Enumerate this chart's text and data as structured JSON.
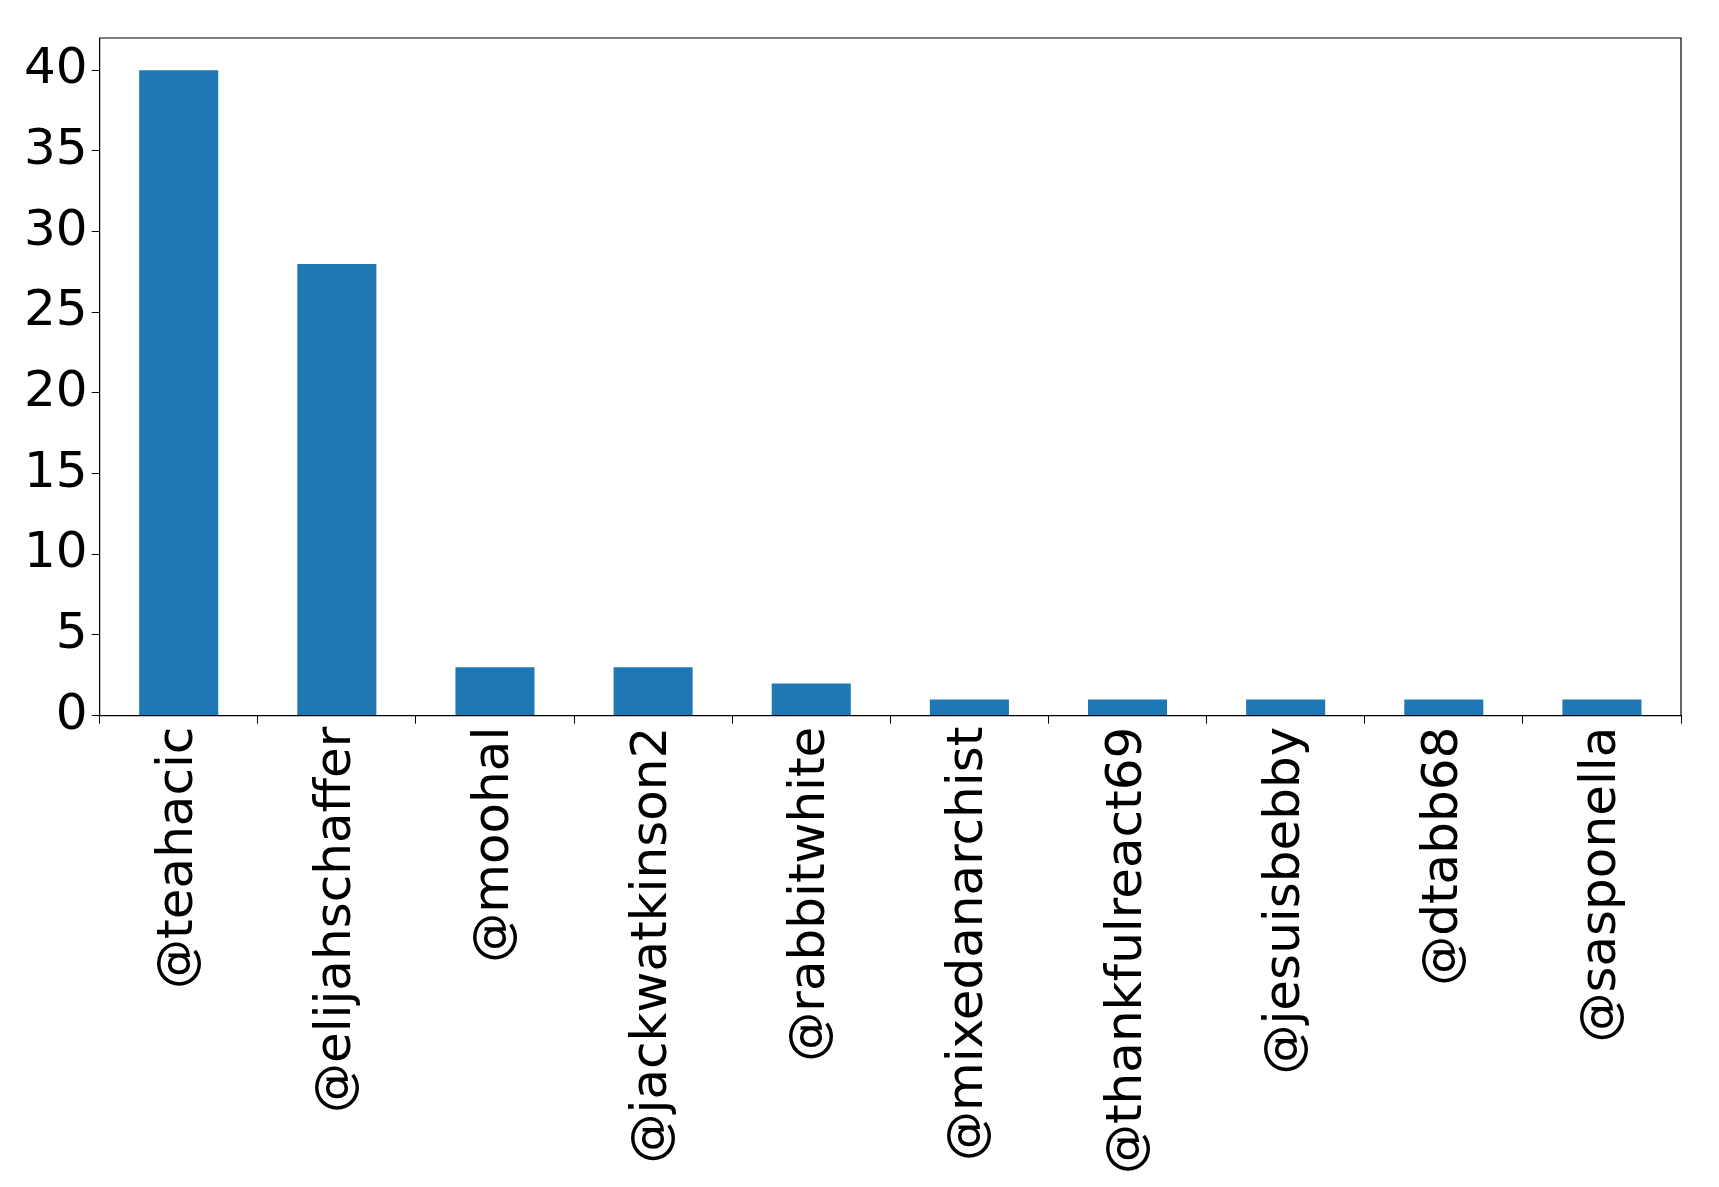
{
  "chart_data": {
    "type": "bar",
    "categories": [
      "@teahacic",
      "@elijahschaffer",
      "@moohal",
      "@jackwatkinson2",
      "@rabbitwhite",
      "@mixedanarchist",
      "@thankfulreact69",
      "@jesuisbebby",
      "@dtabb68",
      "@sasponella"
    ],
    "values": [
      40,
      28,
      3,
      3,
      2,
      1,
      1,
      1,
      1,
      1
    ],
    "color": "#1f77b4",
    "ylim": [
      0,
      42
    ],
    "yticks": [
      0,
      5,
      10,
      15,
      20,
      25,
      30,
      35,
      40
    ],
    "grid": false,
    "legend": false
  }
}
